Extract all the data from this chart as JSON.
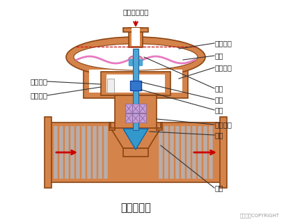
{
  "title": "气动薄膜阀",
  "copyright": "东方仿真COPYRIGHT",
  "bg_color": "#ffffff",
  "valve_color": "#d4834a",
  "valve_edge": "#8b4513",
  "stem_color": "#4da6d4",
  "spring_color": "#2255aa",
  "diaphragm_color": "#e87ac0",
  "fill_color": "#c8a0d8",
  "indicator_color": "#4488cc",
  "arrow_color": "#cc0000",
  "pipe_blue": "#a8c8e8",
  "labels": {
    "pressure_inlet": "压力信号入口",
    "upper_chamber": "膜室上腔",
    "diaphragm": "膜片",
    "lower_chamber": "膜室下腔",
    "spring": "弹簧",
    "push_rod": "推杆",
    "valve_stem": "阀杆",
    "travel_indicator": "行程指针",
    "travel_scale": "行程刻度",
    "seal_packing": "密封填料",
    "valve_disc": "阀芯",
    "valve_seat": "阀座"
  }
}
